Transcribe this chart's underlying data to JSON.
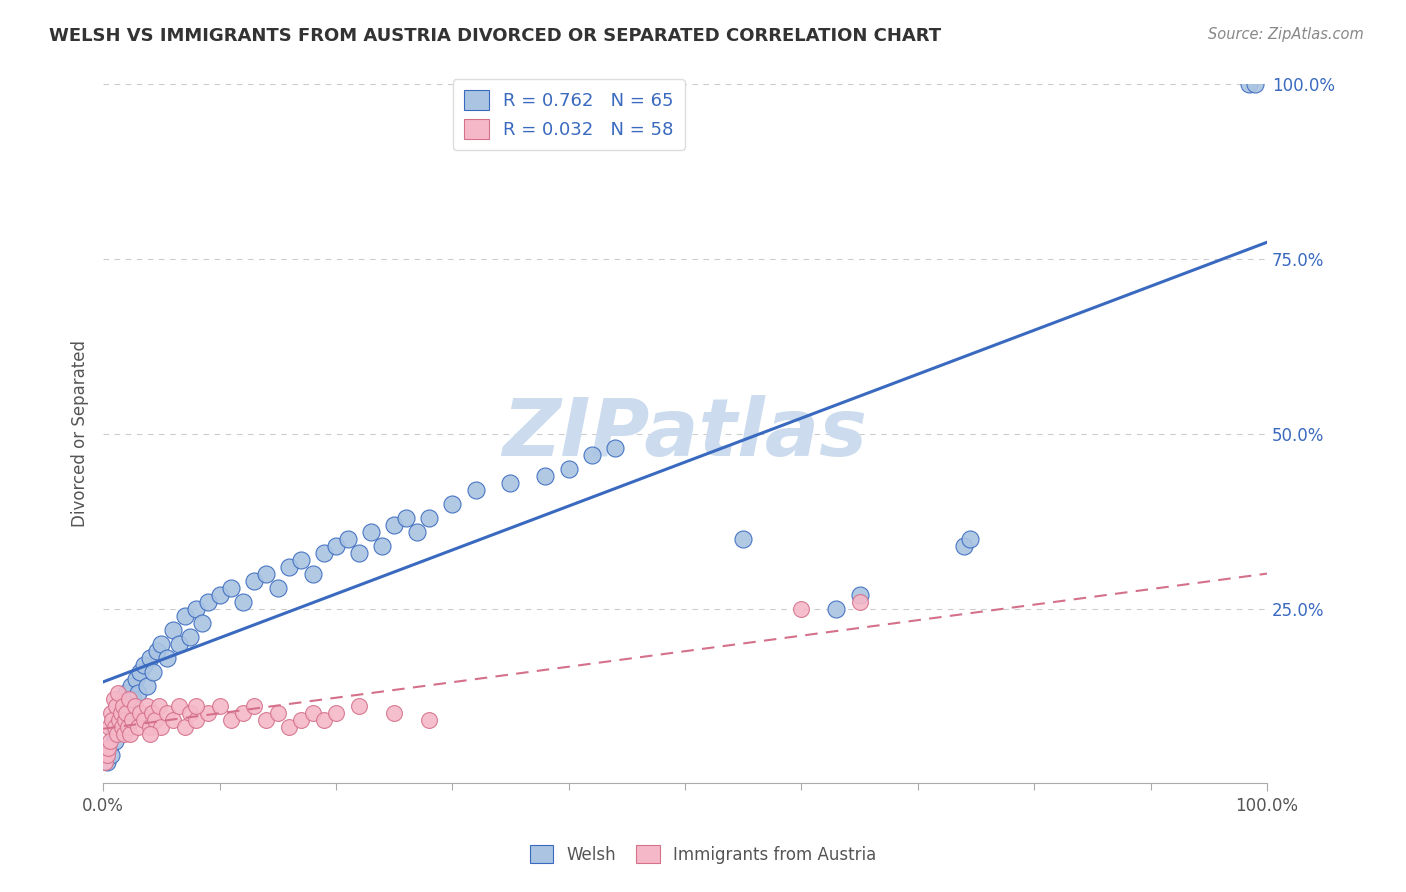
{
  "title": "WELSH VS IMMIGRANTS FROM AUSTRIA DIVORCED OR SEPARATED CORRELATION CHART",
  "source_text": "Source: ZipAtlas.com",
  "ylabel": "Divorced or Separated",
  "welsh_R": 0.762,
  "welsh_N": 65,
  "austria_R": 0.032,
  "austria_N": 58,
  "welsh_color": "#aac4e2",
  "welsh_line_color": "#3a6abf",
  "austria_color": "#f5b8c8",
  "austria_line_color": "#d4708a",
  "watermark_color": "#ccdcee",
  "background_color": "#ffffff",
  "grid_color": "#cccccc",
  "ytick_positions": [
    25,
    50,
    75,
    100
  ],
  "ytick_labels": [
    "25.0%",
    "50.0%",
    "75.0%",
    "100.0%"
  ],
  "welsh_x": [
    0.3,
    0.5,
    0.7,
    0.9,
    1.0,
    1.1,
    1.3,
    1.4,
    1.5,
    1.6,
    1.8,
    2.0,
    2.2,
    2.4,
    2.6,
    2.8,
    3.0,
    3.2,
    3.5,
    3.8,
    4.0,
    4.3,
    4.6,
    5.0,
    5.5,
    6.0,
    6.5,
    7.0,
    7.5,
    8.0,
    8.5,
    9.0,
    10.0,
    11.0,
    12.0,
    13.0,
    14.0,
    15.0,
    16.0,
    17.0,
    18.0,
    19.0,
    20.0,
    21.0,
    22.0,
    23.0,
    24.0,
    25.0,
    26.0,
    27.0,
    28.0,
    30.0,
    32.0,
    35.0,
    38.0,
    40.0,
    42.0,
    44.0,
    55.0,
    63.0,
    65.0,
    74.0,
    74.5,
    98.5,
    99.0
  ],
  "welsh_y": [
    3.0,
    5.0,
    4.0,
    7.0,
    6.0,
    8.0,
    9.0,
    10.0,
    8.0,
    12.0,
    11.0,
    13.0,
    10.0,
    14.0,
    12.0,
    15.0,
    13.0,
    16.0,
    17.0,
    14.0,
    18.0,
    16.0,
    19.0,
    20.0,
    18.0,
    22.0,
    20.0,
    24.0,
    21.0,
    25.0,
    23.0,
    26.0,
    27.0,
    28.0,
    26.0,
    29.0,
    30.0,
    28.0,
    31.0,
    32.0,
    30.0,
    33.0,
    34.0,
    35.0,
    33.0,
    36.0,
    34.0,
    37.0,
    38.0,
    36.0,
    38.0,
    40.0,
    42.0,
    43.0,
    44.0,
    45.0,
    47.0,
    48.0,
    35.0,
    25.0,
    27.0,
    34.0,
    35.0,
    100.0,
    100.0
  ],
  "austria_x": [
    0.2,
    0.3,
    0.4,
    0.5,
    0.6,
    0.7,
    0.8,
    0.9,
    1.0,
    1.1,
    1.2,
    1.3,
    1.4,
    1.5,
    1.6,
    1.7,
    1.8,
    1.9,
    2.0,
    2.1,
    2.2,
    2.3,
    2.5,
    2.7,
    3.0,
    3.2,
    3.5,
    3.8,
    4.0,
    4.2,
    4.5,
    4.8,
    5.0,
    5.5,
    6.0,
    6.5,
    7.0,
    7.5,
    8.0,
    9.0,
    10.0,
    11.0,
    12.0,
    13.0,
    14.0,
    15.0,
    16.0,
    17.0,
    18.0,
    19.0,
    20.0,
    22.0,
    25.0,
    28.0,
    60.0,
    65.0,
    4.0,
    8.0
  ],
  "austria_y": [
    3.0,
    4.0,
    5.0,
    8.0,
    6.0,
    10.0,
    9.0,
    12.0,
    8.0,
    11.0,
    7.0,
    13.0,
    9.0,
    10.0,
    8.0,
    11.0,
    7.0,
    9.0,
    10.0,
    8.0,
    12.0,
    7.0,
    9.0,
    11.0,
    8.0,
    10.0,
    9.0,
    11.0,
    8.0,
    10.0,
    9.0,
    11.0,
    8.0,
    10.0,
    9.0,
    11.0,
    8.0,
    10.0,
    9.0,
    10.0,
    11.0,
    9.0,
    10.0,
    11.0,
    9.0,
    10.0,
    8.0,
    9.0,
    10.0,
    9.0,
    10.0,
    11.0,
    10.0,
    9.0,
    25.0,
    26.0,
    7.0,
    11.0
  ]
}
